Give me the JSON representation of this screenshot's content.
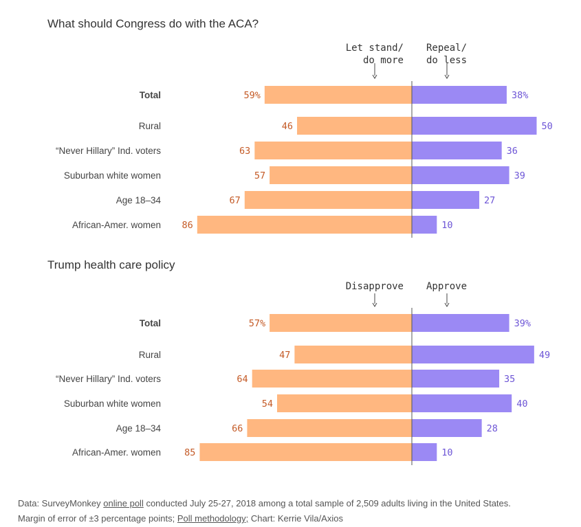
{
  "colors": {
    "left_bar": "#ffb780",
    "right_bar": "#9b89f4",
    "left_text": "#c45a26",
    "right_text": "#6d55d6",
    "axis": "#555555"
  },
  "chart_data": [
    {
      "type": "bar",
      "title": "What should Congress do with the ACA?",
      "series": [
        {
          "name": "Let stand/ do more",
          "label_lines": [
            "Let stand/",
            "do more"
          ],
          "values": [
            59,
            46,
            63,
            57,
            67,
            86
          ]
        },
        {
          "name": "Repeal/ do less",
          "label_lines": [
            "Repeal/",
            "do less"
          ],
          "values": [
            38,
            50,
            36,
            39,
            27,
            10
          ]
        }
      ],
      "categories": [
        "Total",
        "Rural",
        "“Never Hillary” Ind. voters",
        "Suburban white women",
        "Age 18–34",
        "African-Amer. women"
      ],
      "value_labels": {
        "left": [
          "59%",
          "46",
          "63",
          "57",
          "67",
          "86"
        ],
        "right": [
          "38%",
          "50",
          "36",
          "39",
          "27",
          "10"
        ]
      },
      "xlim": [
        -100,
        100
      ]
    },
    {
      "type": "bar",
      "title": "Trump health care policy",
      "series": [
        {
          "name": "Disapprove",
          "label_lines": [
            "Disapprove"
          ],
          "values": [
            57,
            47,
            64,
            54,
            66,
            85
          ]
        },
        {
          "name": "Approve",
          "label_lines": [
            "Approve"
          ],
          "values": [
            39,
            49,
            35,
            40,
            28,
            10
          ]
        }
      ],
      "categories": [
        "Total",
        "Rural",
        "“Never Hillary” Ind. voters",
        "Suburban white women",
        "Age 18–34",
        "African-Amer. women"
      ],
      "value_labels": {
        "left": [
          "57%",
          "47",
          "64",
          "54",
          "66",
          "85"
        ],
        "right": [
          "39%",
          "49",
          "35",
          "40",
          "28",
          "10"
        ]
      },
      "xlim": [
        -100,
        100
      ]
    }
  ],
  "footer": {
    "line1_pre": "Data: SurveyMonkey ",
    "line1_link": "online poll",
    "line1_post": " conducted July 25-27, 2018 among a total sample of 2,509 adults living in the United States.",
    "line2_pre": "Margin of error of ±3 percentage points; ",
    "line2_link": "Poll methodology;",
    "line2_post": " Chart: Kerrie Vila/Axios"
  }
}
